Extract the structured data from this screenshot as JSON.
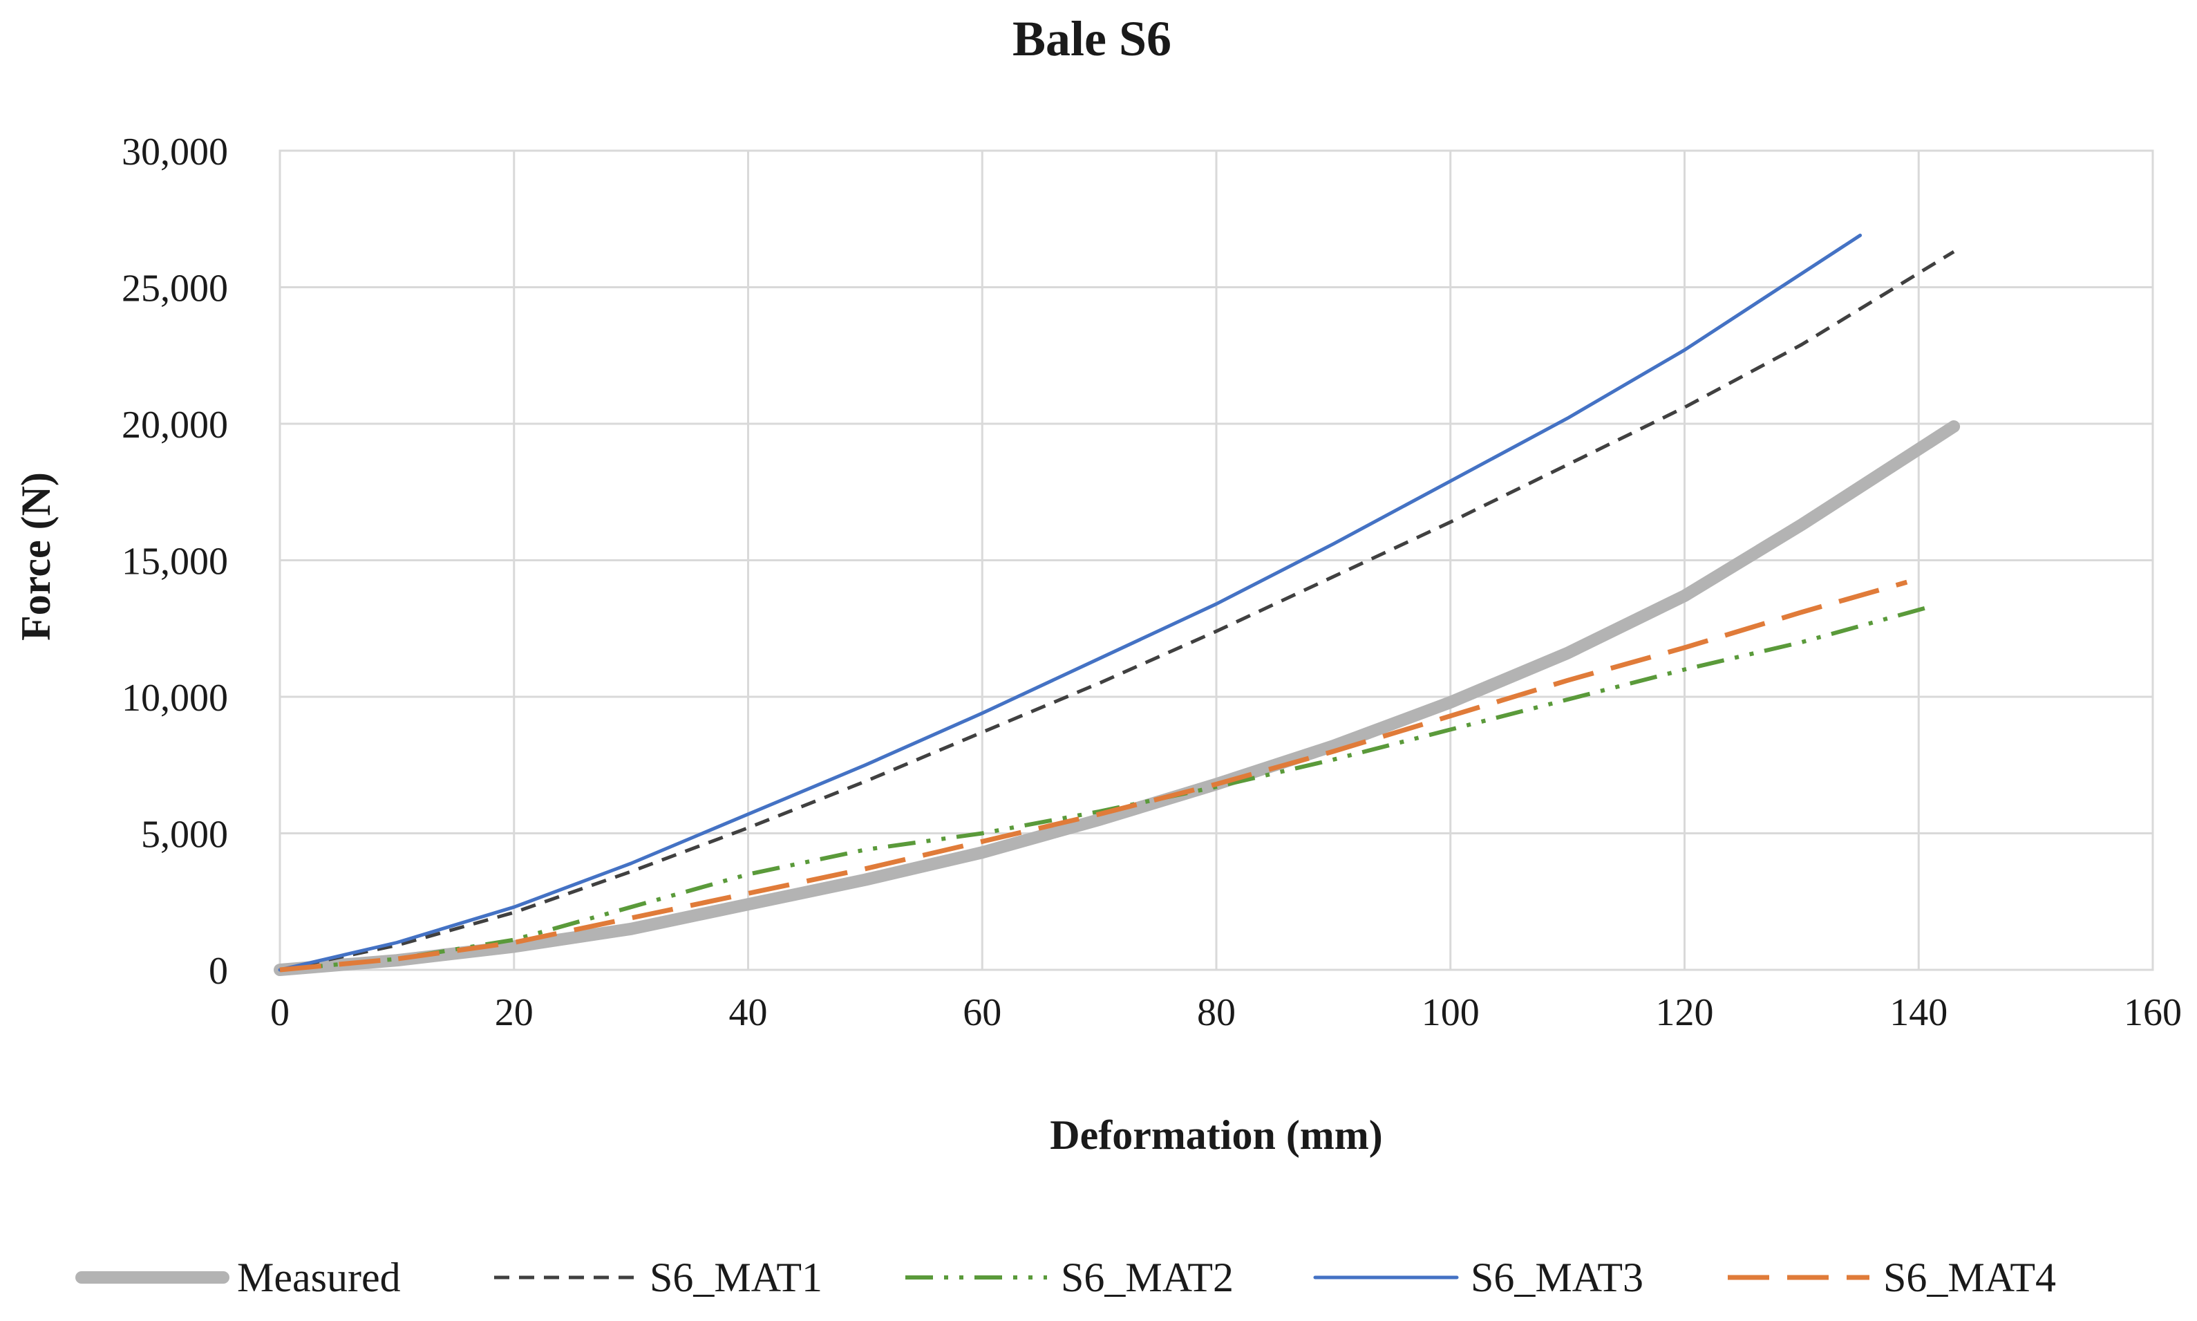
{
  "chart_data": {
    "type": "line",
    "title": "Bale S6",
    "xlabel": "Deformation (mm)",
    "ylabel": "Force (N)",
    "xlim": [
      0,
      160
    ],
    "ylim": [
      0,
      30000
    ],
    "x_ticks": [
      "0",
      "20",
      "40",
      "60",
      "80",
      "100",
      "120",
      "140",
      "160"
    ],
    "y_ticks": [
      "0",
      "5,000",
      "10,000",
      "15,000",
      "20,000",
      "25,000",
      "30,000"
    ],
    "grid": true,
    "legend_position": "bottom",
    "series": [
      {
        "name": "Measured",
        "color": "#b3b3b3",
        "style": "solid-thick",
        "x": [
          0,
          10,
          20,
          30,
          40,
          50,
          60,
          70,
          80,
          90,
          100,
          110,
          120,
          130,
          143
        ],
        "y": [
          0,
          350,
          850,
          1500,
          2400,
          3300,
          4300,
          5500,
          6800,
          8200,
          9800,
          11600,
          13700,
          16300,
          19900
        ]
      },
      {
        "name": "S6_MAT1",
        "color": "#404040",
        "style": "dash",
        "x": [
          0,
          10,
          20,
          30,
          40,
          50,
          60,
          70,
          80,
          90,
          100,
          110,
          120,
          130,
          143
        ],
        "y": [
          0,
          900,
          2100,
          3600,
          5200,
          6900,
          8700,
          10500,
          12400,
          14400,
          16400,
          18500,
          20600,
          22900,
          26300
        ]
      },
      {
        "name": "S6_MAT2",
        "color": "#5a9a3a",
        "style": "dash-dot-dot",
        "x": [
          0,
          10,
          20,
          30,
          40,
          50,
          60,
          70,
          80,
          90,
          100,
          110,
          120,
          130,
          141
        ],
        "y": [
          0,
          400,
          1100,
          2300,
          3500,
          4400,
          5000,
          5800,
          6700,
          7700,
          8800,
          9900,
          11000,
          12000,
          13300
        ]
      },
      {
        "name": "S6_MAT3",
        "color": "#4472c4",
        "style": "solid",
        "x": [
          0,
          10,
          20,
          30,
          40,
          50,
          60,
          70,
          80,
          90,
          100,
          110,
          120,
          135
        ],
        "y": [
          0,
          1000,
          2300,
          3900,
          5700,
          7500,
          9400,
          11400,
          13400,
          15600,
          17900,
          20200,
          22700,
          26900
        ]
      },
      {
        "name": "S6_MAT4",
        "color": "#e07b39",
        "style": "long-dash",
        "x": [
          0,
          10,
          20,
          30,
          40,
          50,
          60,
          70,
          80,
          90,
          100,
          110,
          120,
          130,
          139
        ],
        "y": [
          0,
          400,
          1000,
          1900,
          2800,
          3700,
          4700,
          5700,
          6800,
          8000,
          9300,
          10600,
          11800,
          13100,
          14200
        ]
      }
    ]
  }
}
